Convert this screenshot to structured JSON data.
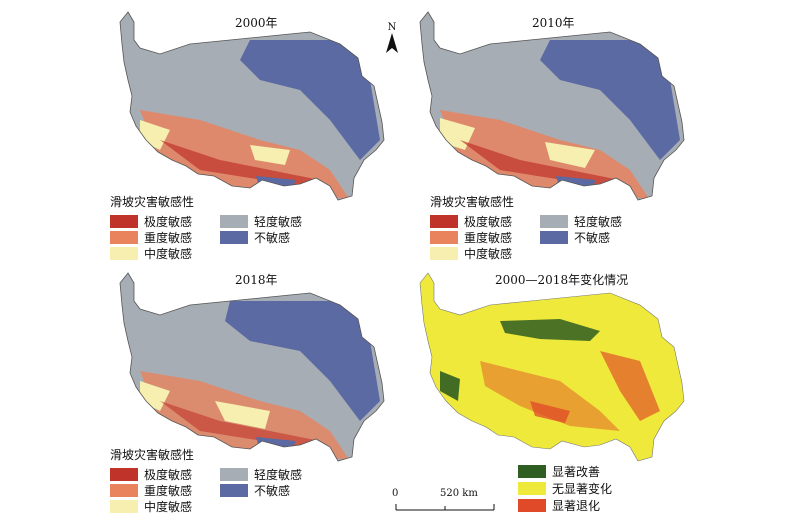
{
  "panels": [
    {
      "id": "p2000",
      "title": "2000年",
      "type": "sensitivity"
    },
    {
      "id": "p2010",
      "title": "2010年",
      "type": "sensitivity"
    },
    {
      "id": "p2018",
      "title": "2018年",
      "type": "sensitivity"
    },
    {
      "id": "pchange",
      "title": "2000—2018年变化情况",
      "type": "change"
    }
  ],
  "sensitivity_legend": {
    "title": "滑坡灾害敏感性",
    "items": [
      {
        "label": "极度敏感",
        "color": "#c0332b"
      },
      {
        "label": "重度敏感",
        "color": "#e8835e"
      },
      {
        "label": "中度敏感",
        "color": "#f6efb0"
      },
      {
        "label": "轻度敏感",
        "color": "#a7adb4"
      },
      {
        "label": "不敏感",
        "color": "#5b6aa2"
      }
    ]
  },
  "change_legend": {
    "items": [
      {
        "label": "显著改善",
        "color": "#2f5e22"
      },
      {
        "label": "无显著变化",
        "color": "#eee93a"
      },
      {
        "label": "显著退化",
        "color": "#e04a28"
      }
    ]
  },
  "north_arrow": {
    "label": "N"
  },
  "scale_bar": {
    "start": "0",
    "end": "520 km"
  }
}
